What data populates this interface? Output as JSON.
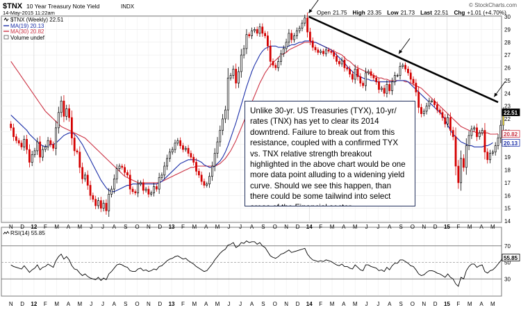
{
  "header": {
    "symbol": "$TNX",
    "name": "10 Year Treasury Note Yield",
    "exchange": "INDX",
    "date": "14-May-2015 11:22am",
    "watermark": "© StockCharts.com",
    "quote": {
      "open_label": "Open",
      "open": "21.75",
      "high_label": "High",
      "high": "23.35",
      "low_label": "Low",
      "low": "21.73",
      "last_label": "Last",
      "last": "22.51",
      "chg_label": "Chg",
      "chg": "+1.01 (+4.70%)"
    }
  },
  "legend": {
    "price": "$TNX (Weekly) 22.51",
    "ma19": "MA(19) 20.13",
    "ma30": "MA(30) 20.82",
    "volume": "Volume undef"
  },
  "rsi_legend": "RSI(14) 55.85",
  "annotation": "Unlike 30-yr. US Treasuries (TYX), 10-yr/ rates (TNX) has yet to clear its 2014 downtrend.  Failure to break out from this resistance, coupled with a confirmed TYX vs. TNX relative strength breakout highlighted in the above chart would be one more data point alluding to a widening yield curve.  Should we see this happen, than there could be some tailwind into select areas of the Financial sector.",
  "colors": {
    "up_candle": "#000000",
    "down_candle": "#d40000",
    "ma19": "#1a2ea8",
    "ma30": "#cc3344",
    "rsi_line": "#000000",
    "trendline": "#000000",
    "last_tag": "#000000",
    "highlight_candle": "#ffe93b"
  },
  "chart_data": [
    {
      "type": "line",
      "title": "$TNX 10 Year Treasury Note Yield INDX",
      "period": "Weekly",
      "ylim": [
        14,
        30
      ],
      "y_ticks": [
        14,
        15,
        16,
        17,
        18,
        19,
        20,
        21,
        22,
        23,
        24,
        25,
        26,
        27,
        28,
        29,
        30
      ],
      "x_ticks": [
        "N",
        "D",
        "12",
        "F",
        "M",
        "A",
        "M",
        "J",
        "J",
        "A",
        "S",
        "O",
        "N",
        "D",
        "13",
        "F",
        "M",
        "A",
        "M",
        "J",
        "J",
        "A",
        "S",
        "O",
        "N",
        "D",
        "14",
        "F",
        "M",
        "A",
        "M",
        "J",
        "J",
        "A",
        "S",
        "O",
        "N",
        "D",
        "15",
        "F",
        "M",
        "A",
        "M"
      ],
      "x_tick_weeks": [
        0,
        4.3,
        8.7,
        13,
        17.3,
        21.7,
        26,
        30.3,
        34.7,
        39,
        43.3,
        47.7,
        52,
        56.3,
        60.7,
        65,
        69.3,
        73.7,
        78,
        82.3,
        86.7,
        91,
        95.3,
        99.7,
        104,
        108.3,
        112.7,
        117,
        121.3,
        125.7,
        130,
        134.3,
        138.7,
        143,
        147.3,
        151.7,
        156,
        160.3,
        164.7,
        169,
        173.3,
        177.7,
        182
      ],
      "x_range_weeks": [
        -1.5,
        184
      ],
      "series": [
        {
          "name": "$TNX (Weekly)",
          "close": [
            21.3,
            20.6,
            20.3,
            20.1,
            19.8,
            20.4,
            19.6,
            18.6,
            19.2,
            19.5,
            20.2,
            19.0,
            19.6,
            19.8,
            20.3,
            20.0,
            19.7,
            21.3,
            22.5,
            23.4,
            22.2,
            22.8,
            22.1,
            20.5,
            19.5,
            19.4,
            18.2,
            17.3,
            17.6,
            16.8,
            16.0,
            15.7,
            15.2,
            15.6,
            15.0,
            15.4,
            14.8,
            16.1,
            16.5,
            17.3,
            18.1,
            18.3,
            18.2,
            17.8,
            17.6,
            16.5,
            16.3,
            16.2,
            16.9,
            17.0,
            16.4,
            16.5,
            16.1,
            16.2,
            16.7,
            16.5,
            17.4,
            17.6,
            18.3,
            18.9,
            19.4,
            19.6,
            20.1,
            20.3,
            19.9,
            19.6,
            19.7,
            19.3,
            19.0,
            18.6,
            17.9,
            17.6,
            17.1,
            16.8,
            16.9,
            17.5,
            18.3,
            19.3,
            20.2,
            21.1,
            22.0,
            22.7,
            25.2,
            25.4,
            25.9,
            24.8,
            25.7,
            27.0,
            27.5,
            28.6,
            28.5,
            28.9,
            29.0,
            28.7,
            29.2,
            28.7,
            28.5,
            27.7,
            26.5,
            26.2,
            26.0,
            26.5,
            27.1,
            27.5,
            28.0,
            28.7,
            28.2,
            28.5,
            28.9,
            29.1,
            29.5,
            29.9,
            28.8,
            28.1,
            27.6,
            27.4,
            27.2,
            27.3,
            27.1,
            27.4,
            27.3,
            27.2,
            26.9,
            26.5,
            26.3,
            26.6,
            26.0,
            25.9,
            25.5,
            25.1,
            25.9,
            25.3,
            24.8,
            24.6,
            25.6,
            25.7,
            25.4,
            25.2,
            24.9,
            24.3,
            24.4,
            24.0,
            24.7,
            24.2,
            24.9,
            25.4,
            25.4,
            26.1,
            26.2,
            25.9,
            25.6,
            25.1,
            24.8,
            24.1,
            22.9,
            22.4,
            22.6,
            23.0,
            23.4,
            23.4,
            23.1,
            22.7,
            22.5,
            22.1,
            21.6,
            22.1,
            21.1,
            20.6,
            18.3,
            17.0,
            18.9,
            18.2,
            19.9,
            20.7,
            21.2,
            21.3,
            20.6,
            20.9,
            21.1,
            19.4,
            18.8,
            19.3,
            19.4,
            19.9,
            20.5,
            21.5,
            22.51
          ]
        },
        {
          "name": "MA(19)",
          "values": [
            22.3,
            22.1,
            21.9,
            21.7,
            21.5,
            21.3,
            21.1,
            20.8,
            20.6,
            20.4,
            20.2,
            20.0,
            19.9,
            19.8,
            19.9,
            20.0,
            20.0,
            20.1,
            20.3,
            20.5,
            20.7,
            20.8,
            20.9,
            20.9,
            20.8,
            20.6,
            20.3,
            20.0,
            19.6,
            19.2,
            18.8,
            18.4,
            18.0,
            17.6,
            17.2,
            16.9,
            16.6,
            16.4,
            16.3,
            16.3,
            16.4,
            16.5,
            16.6,
            16.7,
            16.8,
            16.8,
            16.9,
            16.9,
            16.9,
            16.9,
            16.9,
            16.9,
            16.9,
            16.9,
            16.9,
            16.9,
            17.0,
            17.1,
            17.3,
            17.5,
            17.7,
            17.9,
            18.1,
            18.3,
            18.5,
            18.6,
            18.7,
            18.8,
            18.8,
            18.8,
            18.8,
            18.7,
            18.6,
            18.4,
            18.3,
            18.2,
            18.2,
            18.3,
            18.5,
            18.7,
            19.0,
            19.4,
            19.9,
            20.5,
            21.1,
            21.7,
            22.4,
            23.1,
            23.8,
            24.5,
            25.1,
            25.7,
            26.2,
            26.6,
            27.0,
            27.3,
            27.5,
            27.6,
            27.7,
            27.7,
            27.7,
            27.6,
            27.6,
            27.6,
            27.6,
            27.7,
            27.8,
            27.8,
            27.9,
            28.0,
            28.0,
            28.1,
            28.1,
            28.1,
            28.0,
            28.0,
            27.9,
            27.8,
            27.7,
            27.6,
            27.5,
            27.4,
            27.2,
            27.0,
            26.8,
            26.6,
            26.4,
            26.1,
            25.9,
            25.7,
            25.5,
            25.4,
            25.3,
            25.2,
            25.1,
            25.1,
            25.0,
            25.0,
            24.9,
            24.9,
            24.9,
            24.9,
            24.9,
            24.9,
            24.9,
            24.9,
            25.0,
            25.0,
            25.0,
            25.0,
            24.9,
            24.7,
            24.5,
            24.3,
            24.1,
            23.9,
            23.7,
            23.5,
            23.3,
            23.1,
            22.9,
            22.7,
            22.5,
            22.3,
            21.9,
            21.5,
            21.1,
            20.8,
            20.6,
            20.4,
            20.2,
            20.1,
            20.0,
            19.9,
            19.9,
            19.8,
            19.8,
            19.8,
            19.8,
            19.9,
            19.9,
            20.0,
            20.13
          ]
        },
        {
          "name": "MA(30)",
          "values": [
            26.5,
            26.2,
            25.9,
            25.6,
            25.3,
            25.0,
            24.7,
            24.4,
            24.1,
            23.8,
            23.5,
            23.2,
            22.9,
            22.6,
            22.4,
            22.2,
            22.0,
            21.8,
            21.6,
            21.4,
            21.3,
            21.2,
            21.1,
            21.0,
            20.9,
            20.8,
            20.7,
            20.6,
            20.5,
            20.3,
            20.1,
            19.9,
            19.7,
            19.5,
            19.3,
            19.1,
            18.9,
            18.7,
            18.5,
            18.3,
            18.1,
            17.9,
            17.7,
            17.5,
            17.4,
            17.3,
            17.2,
            17.1,
            17.0,
            17.0,
            17.0,
            17.0,
            17.0,
            17.0,
            17.0,
            17.0,
            17.0,
            17.1,
            17.2,
            17.3,
            17.4,
            17.5,
            17.6,
            17.7,
            17.8,
            17.9,
            18.0,
            18.1,
            18.2,
            18.2,
            18.3,
            18.3,
            18.3,
            18.3,
            18.3,
            18.3,
            18.3,
            18.3,
            18.4,
            18.5,
            18.7,
            18.9,
            19.2,
            19.5,
            19.9,
            20.3,
            20.8,
            21.3,
            21.8,
            22.3,
            22.8,
            23.3,
            23.8,
            24.3,
            24.8,
            25.2,
            25.6,
            25.9,
            26.2,
            26.4,
            26.6,
            26.8,
            27.0,
            27.1,
            27.2,
            27.4,
            27.5,
            27.6,
            27.7,
            27.8,
            27.9,
            28.0,
            28.0,
            28.0,
            28.0,
            28.0,
            27.9,
            27.8,
            27.7,
            27.6,
            27.5,
            27.4,
            27.3,
            27.2,
            27.1,
            27.0,
            26.8,
            26.6,
            26.5,
            26.3,
            26.1,
            26.0,
            25.9,
            25.8,
            25.7,
            25.6,
            25.5,
            25.4,
            25.3,
            25.2,
            25.2,
            25.1,
            25.1,
            25.0,
            25.0,
            25.0,
            25.0,
            25.0,
            25.0,
            24.9,
            24.9,
            24.8,
            24.7,
            24.6,
            24.5,
            24.4,
            24.2,
            24.0,
            23.8,
            23.6,
            23.4,
            23.2,
            23.0,
            22.8,
            22.6,
            22.4,
            22.2,
            22.0,
            21.8,
            21.6,
            21.4,
            21.3,
            21.2,
            21.1,
            21.0,
            21.0,
            20.9,
            20.9,
            20.9,
            20.9,
            20.9,
            20.8,
            20.8,
            20.8,
            20.82
          ]
        }
      ],
      "trendline": [
        {
          "week": 112.5,
          "value": 30.0
        },
        {
          "week": 184,
          "value": 23.3
        }
      ],
      "arrows_at_weeks": [
        113,
        147,
        183
      ],
      "right_tags": [
        {
          "label": "22.51",
          "value": 22.51,
          "kind": "last"
        },
        {
          "label": "20.82",
          "value": 20.82,
          "kind": "ma30"
        },
        {
          "label": "20.13",
          "value": 20.13,
          "kind": "ma19"
        }
      ]
    },
    {
      "type": "line",
      "title": "RSI(14)",
      "ylim": [
        10,
        90
      ],
      "y_ticks": [
        30,
        50,
        70
      ],
      "reference_lines": [
        30,
        50,
        70
      ],
      "right_tags": [
        {
          "label": "55.85",
          "value": 55.85
        }
      ],
      "series": [
        {
          "name": "RSI(14)",
          "values": [
            47,
            45,
            44,
            43,
            42,
            46,
            42,
            38,
            41,
            43,
            47,
            41,
            44,
            45,
            48,
            46,
            44,
            52,
            57,
            60,
            54,
            57,
            53,
            46,
            42,
            41,
            37,
            34,
            36,
            33,
            31,
            30,
            29,
            32,
            28,
            31,
            29,
            36,
            39,
            43,
            47,
            48,
            47,
            45,
            44,
            40,
            39,
            39,
            42,
            43,
            40,
            41,
            39,
            40,
            42,
            41,
            45,
            46,
            49,
            52,
            54,
            55,
            57,
            58,
            56,
            54,
            55,
            52,
            50,
            48,
            45,
            43,
            41,
            39,
            40,
            44,
            48,
            53,
            57,
            61,
            64,
            66,
            71,
            72,
            74,
            68,
            70,
            74,
            73,
            76,
            74,
            75,
            75,
            72,
            74,
            70,
            68,
            63,
            58,
            56,
            55,
            57,
            60,
            61,
            63,
            65,
            62,
            63,
            64,
            65,
            66,
            67,
            60,
            56,
            53,
            52,
            51,
            52,
            51,
            53,
            52,
            51,
            49,
            47,
            46,
            48,
            45,
            45,
            43,
            42,
            47,
            44,
            41,
            40,
            47,
            47,
            45,
            44,
            43,
            40,
            41,
            39,
            44,
            41,
            46,
            49,
            49,
            53,
            53,
            51,
            49,
            46,
            45,
            41,
            36,
            34,
            35,
            38,
            40,
            40,
            39,
            37,
            36,
            34,
            32,
            36,
            32,
            30,
            24,
            21,
            32,
            30,
            40,
            45,
            48,
            48,
            44,
            46,
            47,
            39,
            37,
            40,
            41,
            44,
            48,
            52,
            55.85
          ]
        }
      ]
    }
  ]
}
